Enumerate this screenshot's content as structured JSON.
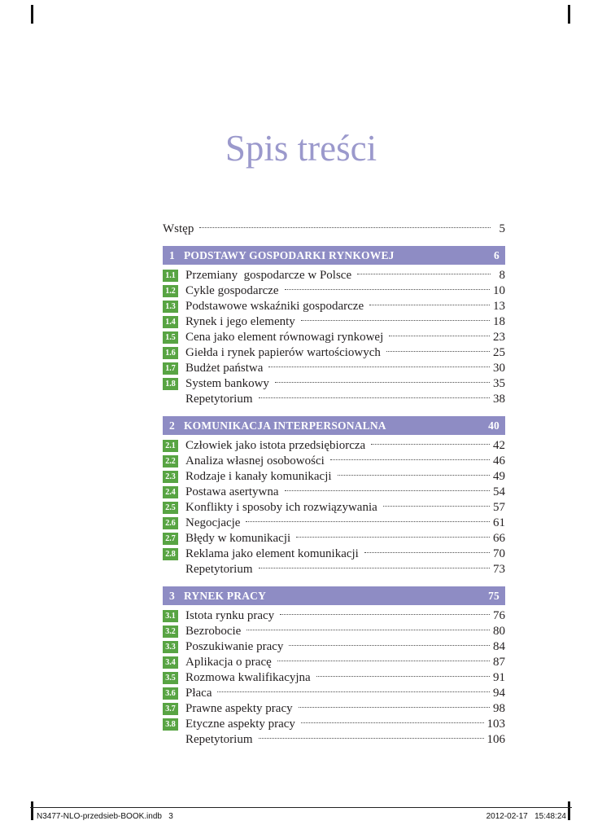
{
  "page": {
    "title": "Spis treści",
    "footer": {
      "left": "N3477-NLO-przedsieb-BOOK.indb   3",
      "right": "2012-02-17   15:48:24"
    }
  },
  "colors": {
    "accent_purple": "#8e8cc4",
    "title_purple": "#9b99cc",
    "accent_green": "#58a443",
    "text": "#231f20"
  },
  "toc": {
    "preamble": [
      {
        "num": "",
        "label": "Wstęp",
        "page": "5"
      }
    ],
    "sections": [
      {
        "number": "1",
        "title": "PODSTAWY GOSPODARKI RYNKOWEJ",
        "page": "6",
        "items": [
          {
            "num": "1.1",
            "label": "Przemiany  gospodarcze w Polsce",
            "page": "8"
          },
          {
            "num": "1.2",
            "label": "Cykle gospodarcze",
            "page": "10"
          },
          {
            "num": "1.3",
            "label": "Podstawowe wskaźniki gospodarcze",
            "page": "13"
          },
          {
            "num": "1.4",
            "label": "Rynek i jego elementy",
            "page": "18"
          },
          {
            "num": "1.5",
            "label": "Cena jako element równowagi rynkowej",
            "page": "23"
          },
          {
            "num": "1.6",
            "label": "Giełda i rynek papierów wartościowych",
            "page": "25"
          },
          {
            "num": "1.7",
            "label": "Budżet państwa",
            "page": "30"
          },
          {
            "num": "1.8",
            "label": "System bankowy",
            "page": "35"
          },
          {
            "num": "",
            "label": "Repetytorium",
            "page": "38"
          }
        ]
      },
      {
        "number": "2",
        "title": "KOMUNIKACJA INTERPERSONALNA",
        "page": "40",
        "items": [
          {
            "num": "2.1",
            "label": "Człowiek jako istota przedsiębiorcza",
            "page": "42"
          },
          {
            "num": "2.2",
            "label": "Analiza własnej osobowości",
            "page": "46"
          },
          {
            "num": "2.3",
            "label": "Rodzaje i kanały komunikacji",
            "page": "49"
          },
          {
            "num": "2.4",
            "label": "Postawa asertywna",
            "page": "54"
          },
          {
            "num": "2.5",
            "label": "Konflikty i sposoby ich rozwiązywania",
            "page": "57"
          },
          {
            "num": "2.6",
            "label": "Negocjacje",
            "page": "61"
          },
          {
            "num": "2.7",
            "label": "Błędy w komunikacji",
            "page": "66"
          },
          {
            "num": "2.8",
            "label": "Reklama jako element komunikacji",
            "page": "70"
          },
          {
            "num": "",
            "label": "Repetytorium",
            "page": "73"
          }
        ]
      },
      {
        "number": "3",
        "title": "RYNEK PRACY",
        "page": "75",
        "items": [
          {
            "num": "3.1",
            "label": "Istota rynku pracy",
            "page": "76"
          },
          {
            "num": "3.2",
            "label": "Bezrobocie",
            "page": "80"
          },
          {
            "num": "3.3",
            "label": "Poszukiwanie pracy",
            "page": "84"
          },
          {
            "num": "3.4",
            "label": "Aplikacja o pracę",
            "page": "87"
          },
          {
            "num": "3.5",
            "label": "Rozmowa kwalifikacyjna",
            "page": "91"
          },
          {
            "num": "3.6",
            "label": "Płaca",
            "page": "94"
          },
          {
            "num": "3.7",
            "label": "Prawne aspekty pracy",
            "page": "98"
          },
          {
            "num": "3.8",
            "label": "Etyczne aspekty pracy",
            "page": "103"
          },
          {
            "num": "",
            "label": "Repetytorium",
            "page": "106"
          }
        ]
      }
    ]
  }
}
